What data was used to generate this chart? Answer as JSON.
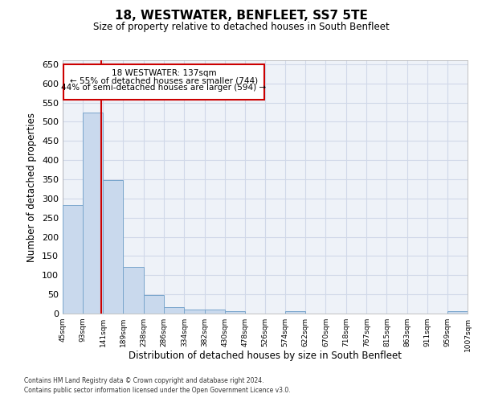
{
  "title": "18, WESTWATER, BENFLEET, SS7 5TE",
  "subtitle": "Size of property relative to detached houses in South Benfleet",
  "xlabel": "Distribution of detached houses by size in South Benfleet",
  "ylabel": "Number of detached properties",
  "footnote1": "Contains HM Land Registry data © Crown copyright and database right 2024.",
  "footnote2": "Contains public sector information licensed under the Open Government Licence v3.0.",
  "annotation_line1": "18 WESTWATER: 137sqm",
  "annotation_line2": "← 55% of detached houses are smaller (744)",
  "annotation_line3": "44% of semi-detached houses are larger (594) →",
  "bar_color": "#c9d9ed",
  "bar_edge_color": "#7aa6cc",
  "redline_color": "#cc0000",
  "annotation_box_color": "#cc0000",
  "grid_color": "#d0d8e8",
  "background_color": "#eef2f8",
  "property_size": 137,
  "bin_edges": [
    45,
    93,
    141,
    189,
    238,
    286,
    334,
    382,
    430,
    478,
    526,
    574,
    622,
    670,
    718,
    767,
    815,
    863,
    911,
    959,
    1007
  ],
  "bin_labels": [
    "45sqm",
    "93sqm",
    "141sqm",
    "189sqm",
    "238sqm",
    "286sqm",
    "334sqm",
    "382sqm",
    "430sqm",
    "478sqm",
    "526sqm",
    "574sqm",
    "622sqm",
    "670sqm",
    "718sqm",
    "767sqm",
    "815sqm",
    "863sqm",
    "911sqm",
    "959sqm",
    "1007sqm"
  ],
  "counts": [
    283,
    524,
    348,
    122,
    49,
    17,
    11,
    10,
    7,
    0,
    0,
    6,
    0,
    0,
    0,
    0,
    0,
    0,
    0,
    6
  ],
  "ylim": [
    0,
    660
  ],
  "yticks": [
    0,
    50,
    100,
    150,
    200,
    250,
    300,
    350,
    400,
    450,
    500,
    550,
    600,
    650
  ]
}
